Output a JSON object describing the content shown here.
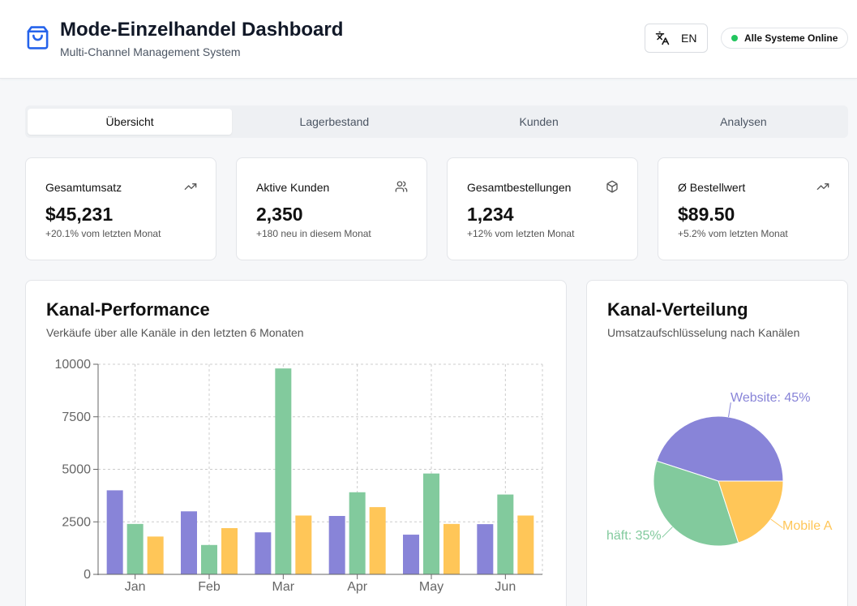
{
  "header": {
    "title": "Mode-Einzelhandel Dashboard",
    "subtitle": "Multi-Channel Management System",
    "language": "EN",
    "status": "Alle Systeme Online",
    "logo_icon": "shopping-bag-icon",
    "language_icon": "translate-icon",
    "accent_color": "#2563eb",
    "status_color": "#22c55e"
  },
  "tabs": [
    {
      "label": "Übersicht",
      "active": true
    },
    {
      "label": "Lagerbestand",
      "active": false
    },
    {
      "label": "Kunden",
      "active": false
    },
    {
      "label": "Analysen",
      "active": false
    }
  ],
  "kpis": [
    {
      "label": "Gesamtumsatz",
      "value": "$45,231",
      "note": "+20.1% vom letzten Monat",
      "icon": "trending-up-icon"
    },
    {
      "label": "Aktive Kunden",
      "value": "2,350",
      "note": "+180 neu in diesem Monat",
      "icon": "users-icon"
    },
    {
      "label": "Gesamtbestellungen",
      "value": "1,234",
      "note": "+12% vom letzten Monat",
      "icon": "package-icon"
    },
    {
      "label": "Ø Bestellwert",
      "value": "$89.50",
      "note": "+5.2% vom letzten Monat",
      "icon": "trending-up-icon"
    }
  ],
  "performance": {
    "title": "Kanal-Performance",
    "subtitle": "Verkäufe über alle Kanäle in den letzten 6 Monaten"
  },
  "distribution": {
    "title": "Kanal-Verteilung",
    "subtitle": "Umsatzaufschlüsselung nach Kanälen"
  },
  "chart_data": [
    {
      "type": "bar",
      "categories": [
        "Jan",
        "Feb",
        "Mar",
        "Apr",
        "May",
        "Jun"
      ],
      "series": [
        {
          "values": [
            4000,
            3000,
            2000,
            2780,
            1890,
            2390
          ],
          "color": "#8884d8"
        },
        {
          "values": [
            2400,
            1398,
            9800,
            3908,
            4800,
            3800
          ],
          "color": "#82ca9d"
        },
        {
          "values": [
            1800,
            2200,
            2800,
            3200,
            2400,
            2800
          ],
          "color": "#ffc658"
        }
      ],
      "ylim": [
        0,
        10000
      ],
      "yticks": [
        0,
        2500,
        5000,
        7500,
        10000
      ],
      "grid": true
    },
    {
      "type": "pie",
      "labels": [
        "Website: 45%",
        "häft: 35%",
        "Mobile A"
      ],
      "values": [
        45,
        35,
        20
      ],
      "colors": [
        "#8884d8",
        "#82ca9d",
        "#ffc658"
      ]
    }
  ]
}
